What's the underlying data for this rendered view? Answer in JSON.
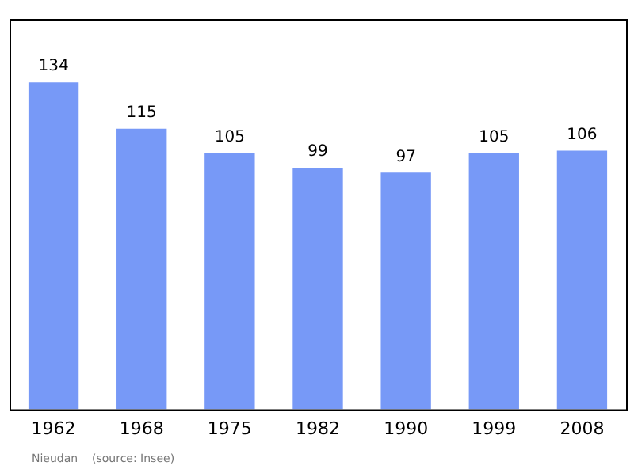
{
  "chart_data": {
    "type": "bar",
    "categories": [
      "1962",
      "1968",
      "1975",
      "1982",
      "1990",
      "1999",
      "2008"
    ],
    "values": [
      134,
      115,
      105,
      99,
      97,
      105,
      106
    ],
    "color": "#7799f7",
    "data_labels": true,
    "grid": false,
    "legend": false,
    "annotations": [
      "Nieudan    (source: Insee)"
    ]
  }
}
